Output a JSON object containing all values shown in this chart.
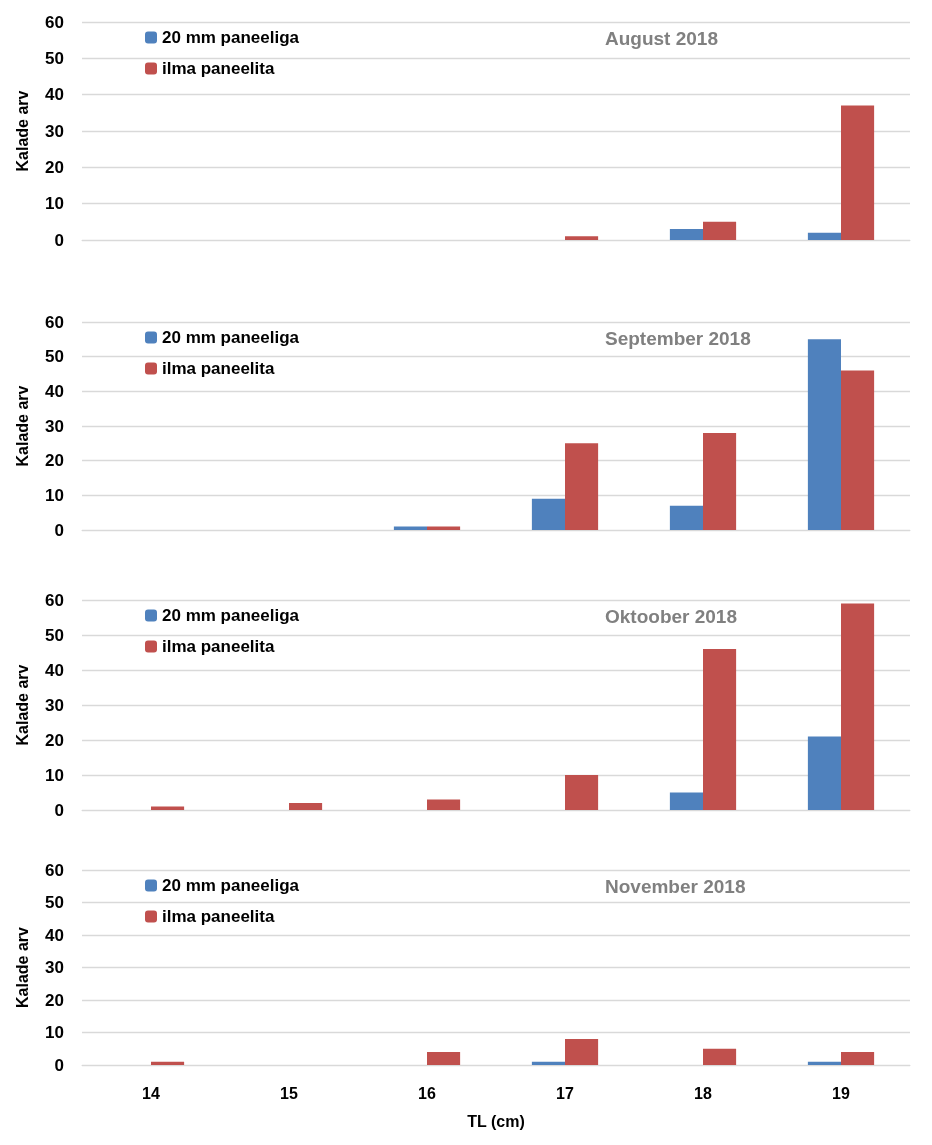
{
  "chart_data": [
    {
      "type": "bar",
      "title": "August 2018",
      "ylabel": "Kalade arv",
      "categories": [
        "14",
        "15",
        "16",
        "17",
        "18",
        "19"
      ],
      "series": [
        {
          "name": "20 mm paneeliga",
          "color": "#4f81bd",
          "values": [
            0,
            0,
            0,
            0,
            3,
            2
          ]
        },
        {
          "name": "ilma paneelita",
          "color": "#c0504d",
          "values": [
            0,
            0,
            0,
            1,
            5,
            37
          ]
        }
      ],
      "ylim": [
        0,
        60
      ],
      "yticks": [
        0,
        10,
        20,
        30,
        40,
        50,
        60
      ],
      "grid": "y",
      "legend": "top left",
      "tick_labels": "y"
    },
    {
      "type": "bar",
      "title": "September 2018",
      "ylabel": "Kalade arv",
      "categories": [
        "14",
        "15",
        "16",
        "17",
        "18",
        "19"
      ],
      "series": [
        {
          "name": "20 mm paneeliga",
          "color": "#4f81bd",
          "values": [
            0,
            0,
            1,
            9,
            7,
            55
          ]
        },
        {
          "name": "ilma paneelita",
          "color": "#c0504d",
          "values": [
            0,
            0,
            1,
            25,
            28,
            46
          ]
        }
      ],
      "ylim": [
        0,
        60
      ],
      "yticks": [
        0,
        10,
        20,
        30,
        40,
        50,
        60
      ],
      "grid": "y",
      "legend": "top left",
      "tick_labels": "y"
    },
    {
      "type": "bar",
      "title": "Oktoober 2018",
      "ylabel": "Kalade arv",
      "categories": [
        "14",
        "15",
        "16",
        "17",
        "18",
        "19"
      ],
      "series": [
        {
          "name": "20 mm paneeliga",
          "color": "#4f81bd",
          "values": [
            0,
            0,
            0,
            0,
            5,
            21
          ]
        },
        {
          "name": "ilma paneelita",
          "color": "#c0504d",
          "values": [
            1,
            2,
            3,
            10,
            46,
            59
          ]
        }
      ],
      "ylim": [
        0,
        60
      ],
      "yticks": [
        0,
        10,
        20,
        30,
        40,
        50,
        60
      ],
      "grid": "y",
      "legend": "top left",
      "tick_labels": "y"
    },
    {
      "type": "bar",
      "title": "November 2018",
      "ylabel": "Kalade arv",
      "xlabel": "TL (cm)",
      "categories": [
        "14",
        "15",
        "16",
        "17",
        "18",
        "19"
      ],
      "series": [
        {
          "name": "20 mm paneeliga",
          "color": "#4f81bd",
          "values": [
            0,
            0,
            0,
            1,
            0,
            1
          ]
        },
        {
          "name": "ilma paneelita",
          "color": "#c0504d",
          "values": [
            1,
            0,
            4,
            8,
            5,
            4
          ]
        }
      ],
      "ylim": [
        0,
        60
      ],
      "yticks": [
        0,
        10,
        20,
        30,
        40,
        50,
        60
      ],
      "grid": "y",
      "legend": "top left"
    }
  ]
}
